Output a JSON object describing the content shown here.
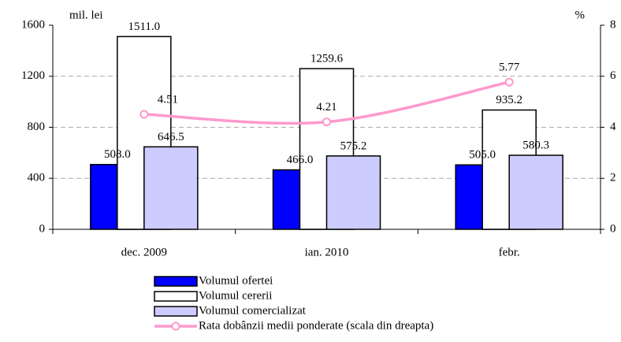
{
  "chart_data": {
    "type": "bar",
    "y_label": "mil. lei",
    "y2_label": "%",
    "categories": [
      "dec. 2009",
      "ian. 2010",
      "febr."
    ],
    "series": [
      {
        "name": "Volumul ofertei",
        "color": "#0000ff",
        "values": [
          508,
          466,
          505
        ],
        "value_labels": [
          "508.0",
          "466.0",
          "505.0"
        ]
      },
      {
        "name": "Volumul cererii",
        "color": "#ffffff",
        "values": [
          1511,
          1259.6,
          935.2
        ],
        "value_labels": [
          "1511.0",
          "1259.6",
          "935.2"
        ]
      },
      {
        "name": "Volumul comercializat",
        "color": "#ccccff",
        "values": [
          646.5,
          575.2,
          580.3
        ]
      },
      {
        "name": "Rata dobânzii medii ponderate (scala din dreapta)",
        "type": "line",
        "axis": "y2",
        "color": "#ff99cc",
        "values": [
          4.51,
          4.21,
          5.77
        ]
      }
    ],
    "ylim": [
      0,
      1600
    ],
    "yticks": [
      0,
      400,
      800,
      1200,
      1600
    ],
    "y2lim": [
      0,
      8
    ],
    "y2ticks": [
      0,
      2,
      4,
      6,
      8
    ],
    "grid": true
  }
}
